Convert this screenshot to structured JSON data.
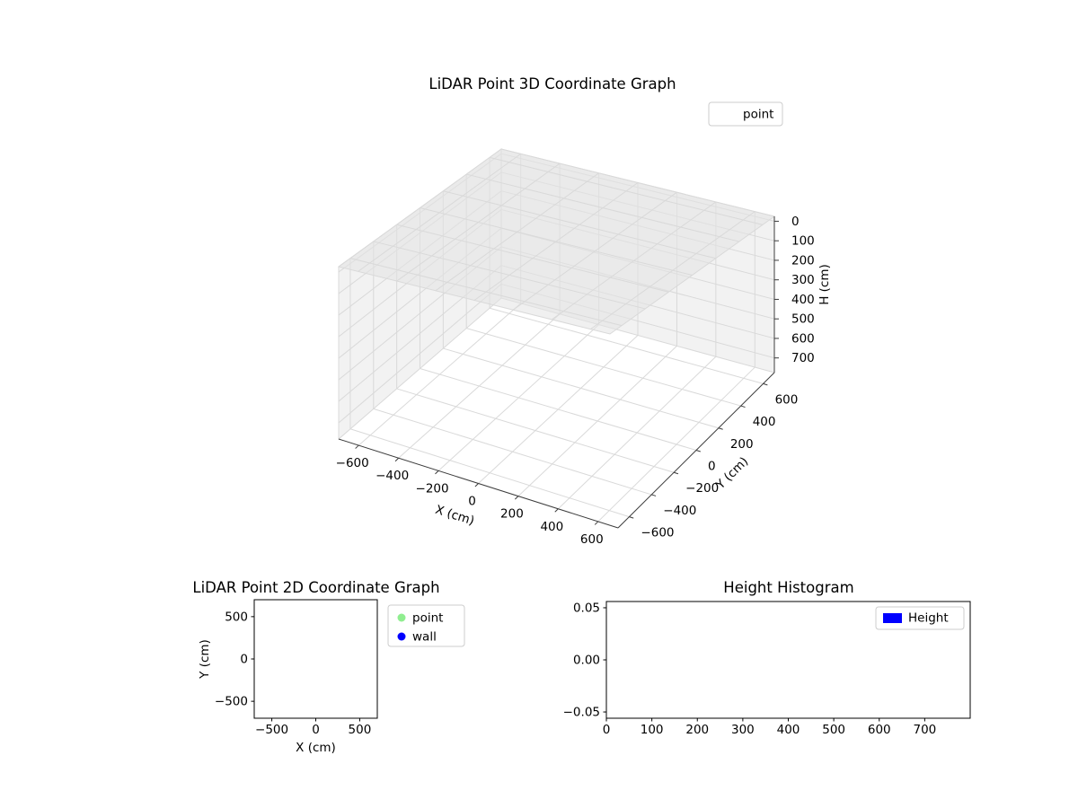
{
  "figure": {
    "background": "#ffffff"
  },
  "chart_data": [
    {
      "id": "plot3d",
      "type": "scatter",
      "projection": "3d",
      "title": "LiDAR Point 3D Coordinate Graph",
      "xlabel": "X (cm)",
      "ylabel": "Y (cm)",
      "zlabel": "H (cm)",
      "xlim": [
        -700,
        700
      ],
      "ylim": [
        -700,
        700
      ],
      "zlim": [
        -25,
        775
      ],
      "zaxis_inverted": true,
      "xticks": [
        -600,
        -400,
        -200,
        0,
        200,
        400,
        600
      ],
      "yticks": [
        -600,
        -400,
        -200,
        0,
        200,
        400,
        600
      ],
      "zticks": [
        0,
        100,
        200,
        300,
        400,
        500,
        600,
        700
      ],
      "grid": true,
      "legend": {
        "position": "upper right",
        "entries": [
          {
            "label": "point",
            "marker": "none",
            "color": null
          }
        ]
      },
      "series": [
        {
          "name": "point",
          "points": []
        }
      ]
    },
    {
      "id": "plot2d",
      "type": "scatter",
      "title": "LiDAR Point 2D Coordinate Graph",
      "xlabel": "X (cm)",
      "ylabel": "Y (cm)",
      "xlim": [
        -700,
        700
      ],
      "ylim": [
        -700,
        700
      ],
      "xticks": [
        -500,
        0,
        500
      ],
      "yticks": [
        500,
        0,
        -500
      ],
      "grid": false,
      "legend": {
        "position": "outside right",
        "entries": [
          {
            "label": "point",
            "marker": "circle",
            "color": "#90EE90"
          },
          {
            "label": "wall",
            "marker": "circle",
            "color": "#0000FF"
          }
        ]
      },
      "series": [
        {
          "name": "point",
          "points": []
        },
        {
          "name": "wall",
          "points": []
        }
      ]
    },
    {
      "id": "histogram",
      "type": "histogram",
      "title": "Height Histogram",
      "xlabel": "",
      "ylabel": "",
      "xlim": [
        0,
        800
      ],
      "ylim": [
        -0.056,
        0.056
      ],
      "xticks": [
        0,
        100,
        200,
        300,
        400,
        500,
        600,
        700
      ],
      "yticks": [
        0.05,
        0,
        -0.05
      ],
      "ytick_decimals": 2,
      "grid": false,
      "legend": {
        "position": "upper right",
        "entries": [
          {
            "label": "Height",
            "marker": "rect",
            "color": "#0000FF"
          }
        ]
      },
      "values": []
    }
  ]
}
